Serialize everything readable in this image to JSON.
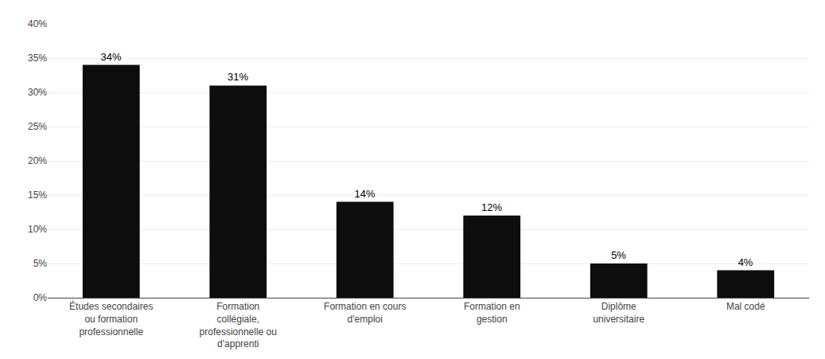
{
  "chart_data": {
    "type": "bar",
    "categories": [
      "Études secondaires\nou formation\nprofessionnelle",
      "Formation\ncollégiale,\nprofessionnelle ou\nd'apprenti",
      "Formation en cours\nd'emploi",
      "Formation en\ngestion",
      "Diplôme\nuniversitaire",
      "Mal codé"
    ],
    "values": [
      34,
      31,
      14,
      12,
      5,
      4
    ],
    "value_labels": [
      "34%",
      "31%",
      "14%",
      "12%",
      "5%",
      "4%"
    ],
    "data_labels": true,
    "color": "#0d0d0d",
    "ylim": [
      0,
      40
    ],
    "yticks": [
      {
        "value": 0,
        "label": "0%"
      },
      {
        "value": 5,
        "label": "5%"
      },
      {
        "value": 10,
        "label": "10%"
      },
      {
        "value": 15,
        "label": "15%"
      },
      {
        "value": 20,
        "label": "20%"
      },
      {
        "value": 25,
        "label": "25%"
      },
      {
        "value": 30,
        "label": "30%"
      },
      {
        "value": 35,
        "label": "35%"
      },
      {
        "value": 40,
        "label": "40%"
      }
    ],
    "grid": true
  }
}
